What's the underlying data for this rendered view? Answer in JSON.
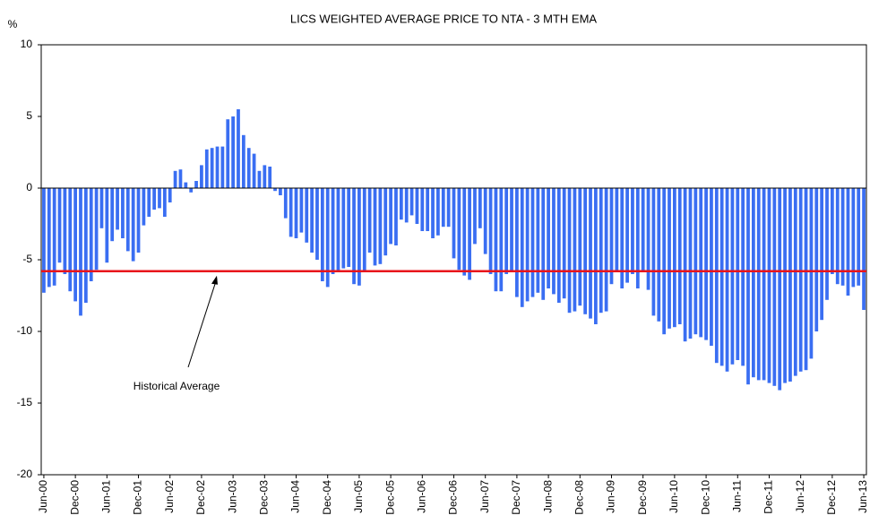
{
  "chart_data": {
    "type": "bar",
    "title": "LICS WEIGHTED AVERAGE PRICE TO NTA - 3 MTH EMA",
    "y_label": "%",
    "categories": [
      "Jun-00",
      null,
      null,
      null,
      null,
      null,
      "Dec-00",
      null,
      null,
      null,
      null,
      null,
      "Jun-01",
      null,
      null,
      null,
      null,
      null,
      "Dec-01",
      null,
      null,
      null,
      null,
      null,
      "Jun-02",
      null,
      null,
      null,
      null,
      null,
      "Dec-02",
      null,
      null,
      null,
      null,
      null,
      "Jun-03",
      null,
      null,
      null,
      null,
      null,
      "Dec-03",
      null,
      null,
      null,
      null,
      null,
      "Jun-04",
      null,
      null,
      null,
      null,
      null,
      "Dec-04",
      null,
      null,
      null,
      null,
      null,
      "Jun-05",
      null,
      null,
      null,
      null,
      null,
      "Dec-05",
      null,
      null,
      null,
      null,
      null,
      "Jun-06",
      null,
      null,
      null,
      null,
      null,
      "Dec-06",
      null,
      null,
      null,
      null,
      null,
      "Jun-07",
      null,
      null,
      null,
      null,
      null,
      "Dec-07",
      null,
      null,
      null,
      null,
      null,
      "Jun-08",
      null,
      null,
      null,
      null,
      null,
      "Dec-08",
      null,
      null,
      null,
      null,
      null,
      "Jun-09",
      null,
      null,
      null,
      null,
      null,
      "Dec-09",
      null,
      null,
      null,
      null,
      null,
      "Jun-10",
      null,
      null,
      null,
      null,
      null,
      "Dec-10",
      null,
      null,
      null,
      null,
      null,
      "Jun-11",
      null,
      null,
      null,
      null,
      null,
      "Dec-11",
      null,
      null,
      null,
      null,
      null,
      "Jun-12",
      null,
      null,
      null,
      null,
      null,
      "Dec-12",
      null,
      null,
      null,
      null,
      null,
      "Jun-13"
    ],
    "values": [
      -7.3,
      -6.9,
      -6.8,
      -5.2,
      -6.0,
      -7.2,
      -7.9,
      -8.9,
      -8.0,
      -6.5,
      -5.7,
      -2.8,
      -5.2,
      -3.7,
      -2.9,
      -3.5,
      -4.4,
      -5.1,
      -4.5,
      -2.6,
      -2.0,
      -1.5,
      -1.4,
      -2.0,
      -1.0,
      1.2,
      1.3,
      0.4,
      -0.3,
      0.5,
      1.6,
      2.7,
      2.8,
      2.9,
      2.9,
      4.8,
      5.0,
      5.5,
      3.7,
      2.8,
      2.4,
      1.2,
      1.6,
      1.5,
      -0.2,
      -0.5,
      -2.1,
      -3.4,
      -3.5,
      -3.1,
      -3.8,
      -4.5,
      -5.0,
      -6.5,
      -6.9,
      -6.0,
      -5.8,
      -5.6,
      -5.5,
      -6.7,
      -6.8,
      -5.8,
      -4.5,
      -5.4,
      -5.3,
      -4.7,
      -3.9,
      -4.0,
      -2.2,
      -2.4,
      -1.9,
      -2.5,
      -3.0,
      -3.0,
      -3.5,
      -3.3,
      -2.7,
      -2.7,
      -4.9,
      -5.7,
      -6.1,
      -6.4,
      -3.9,
      -2.8,
      -4.6,
      -6.0,
      -7.2,
      -7.2,
      -6.0,
      -5.8,
      -7.6,
      -8.3,
      -7.9,
      -7.6,
      -7.3,
      -7.8,
      -7.0,
      -7.4,
      -8.0,
      -7.7,
      -8.7,
      -8.6,
      -8.2,
      -8.8,
      -9.1,
      -9.5,
      -8.7,
      -8.6,
      -6.7,
      -5.8,
      -7.0,
      -6.6,
      -6.0,
      -7.0,
      -5.8,
      -7.1,
      -8.9,
      -9.3,
      -10.2,
      -9.8,
      -9.7,
      -9.5,
      -10.7,
      -10.5,
      -10.2,
      -10.4,
      -10.6,
      -11.0,
      -12.2,
      -12.4,
      -12.8,
      -12.3,
      -12.0,
      -12.4,
      -13.7,
      -13.2,
      -13.4,
      -13.4,
      -13.6,
      -13.8,
      -14.1,
      -13.6,
      -13.5,
      -13.1,
      -12.8,
      -12.7,
      -11.9,
      -10.0,
      -9.2,
      -7.8,
      -6.0,
      -6.7,
      -6.8,
      -7.5,
      -6.9,
      -6.8,
      -8.5
    ],
    "color": "#3a6ef2",
    "ylim": [
      -20,
      10
    ],
    "yticks": [
      -20,
      -15,
      -10,
      -5,
      0,
      5,
      10
    ],
    "average": {
      "value": -5.8,
      "label": "Historical Average",
      "color": "#e8141b"
    }
  }
}
